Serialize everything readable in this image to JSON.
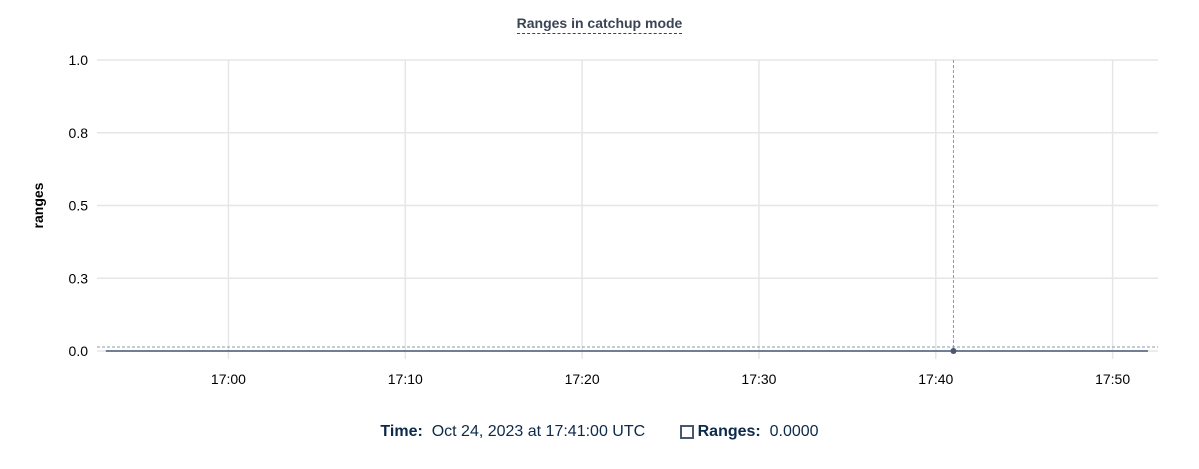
{
  "chart_data": {
    "type": "line",
    "title": "Ranges in catchup mode",
    "ylabel": "ranges",
    "xlabel": "",
    "ylim": [
      0,
      1
    ],
    "yticks": [
      0,
      0.25,
      0.5,
      0.75,
      1
    ],
    "ytick_labels": [
      "0.0",
      "0.3",
      "0.5",
      "0.8",
      "1.0"
    ],
    "xlim": [
      "16:52:34",
      "17:52:34"
    ],
    "xtick_labels": [
      "17:00",
      "17:10",
      "17:20",
      "17:30",
      "17:40",
      "17:50"
    ],
    "grid": true,
    "series": [
      {
        "name": "Ranges",
        "color": "#475872",
        "x_range": [
          "16:52:30",
          "17:52:00"
        ],
        "value": 0
      }
    ],
    "hover": {
      "time": "17:41:00",
      "value": 0
    }
  },
  "legend": {
    "time_label": "Time:",
    "time_value": "Oct 24, 2023 at 17:41:00 UTC",
    "series_label": "Ranges:",
    "series_value": "0.0000"
  }
}
